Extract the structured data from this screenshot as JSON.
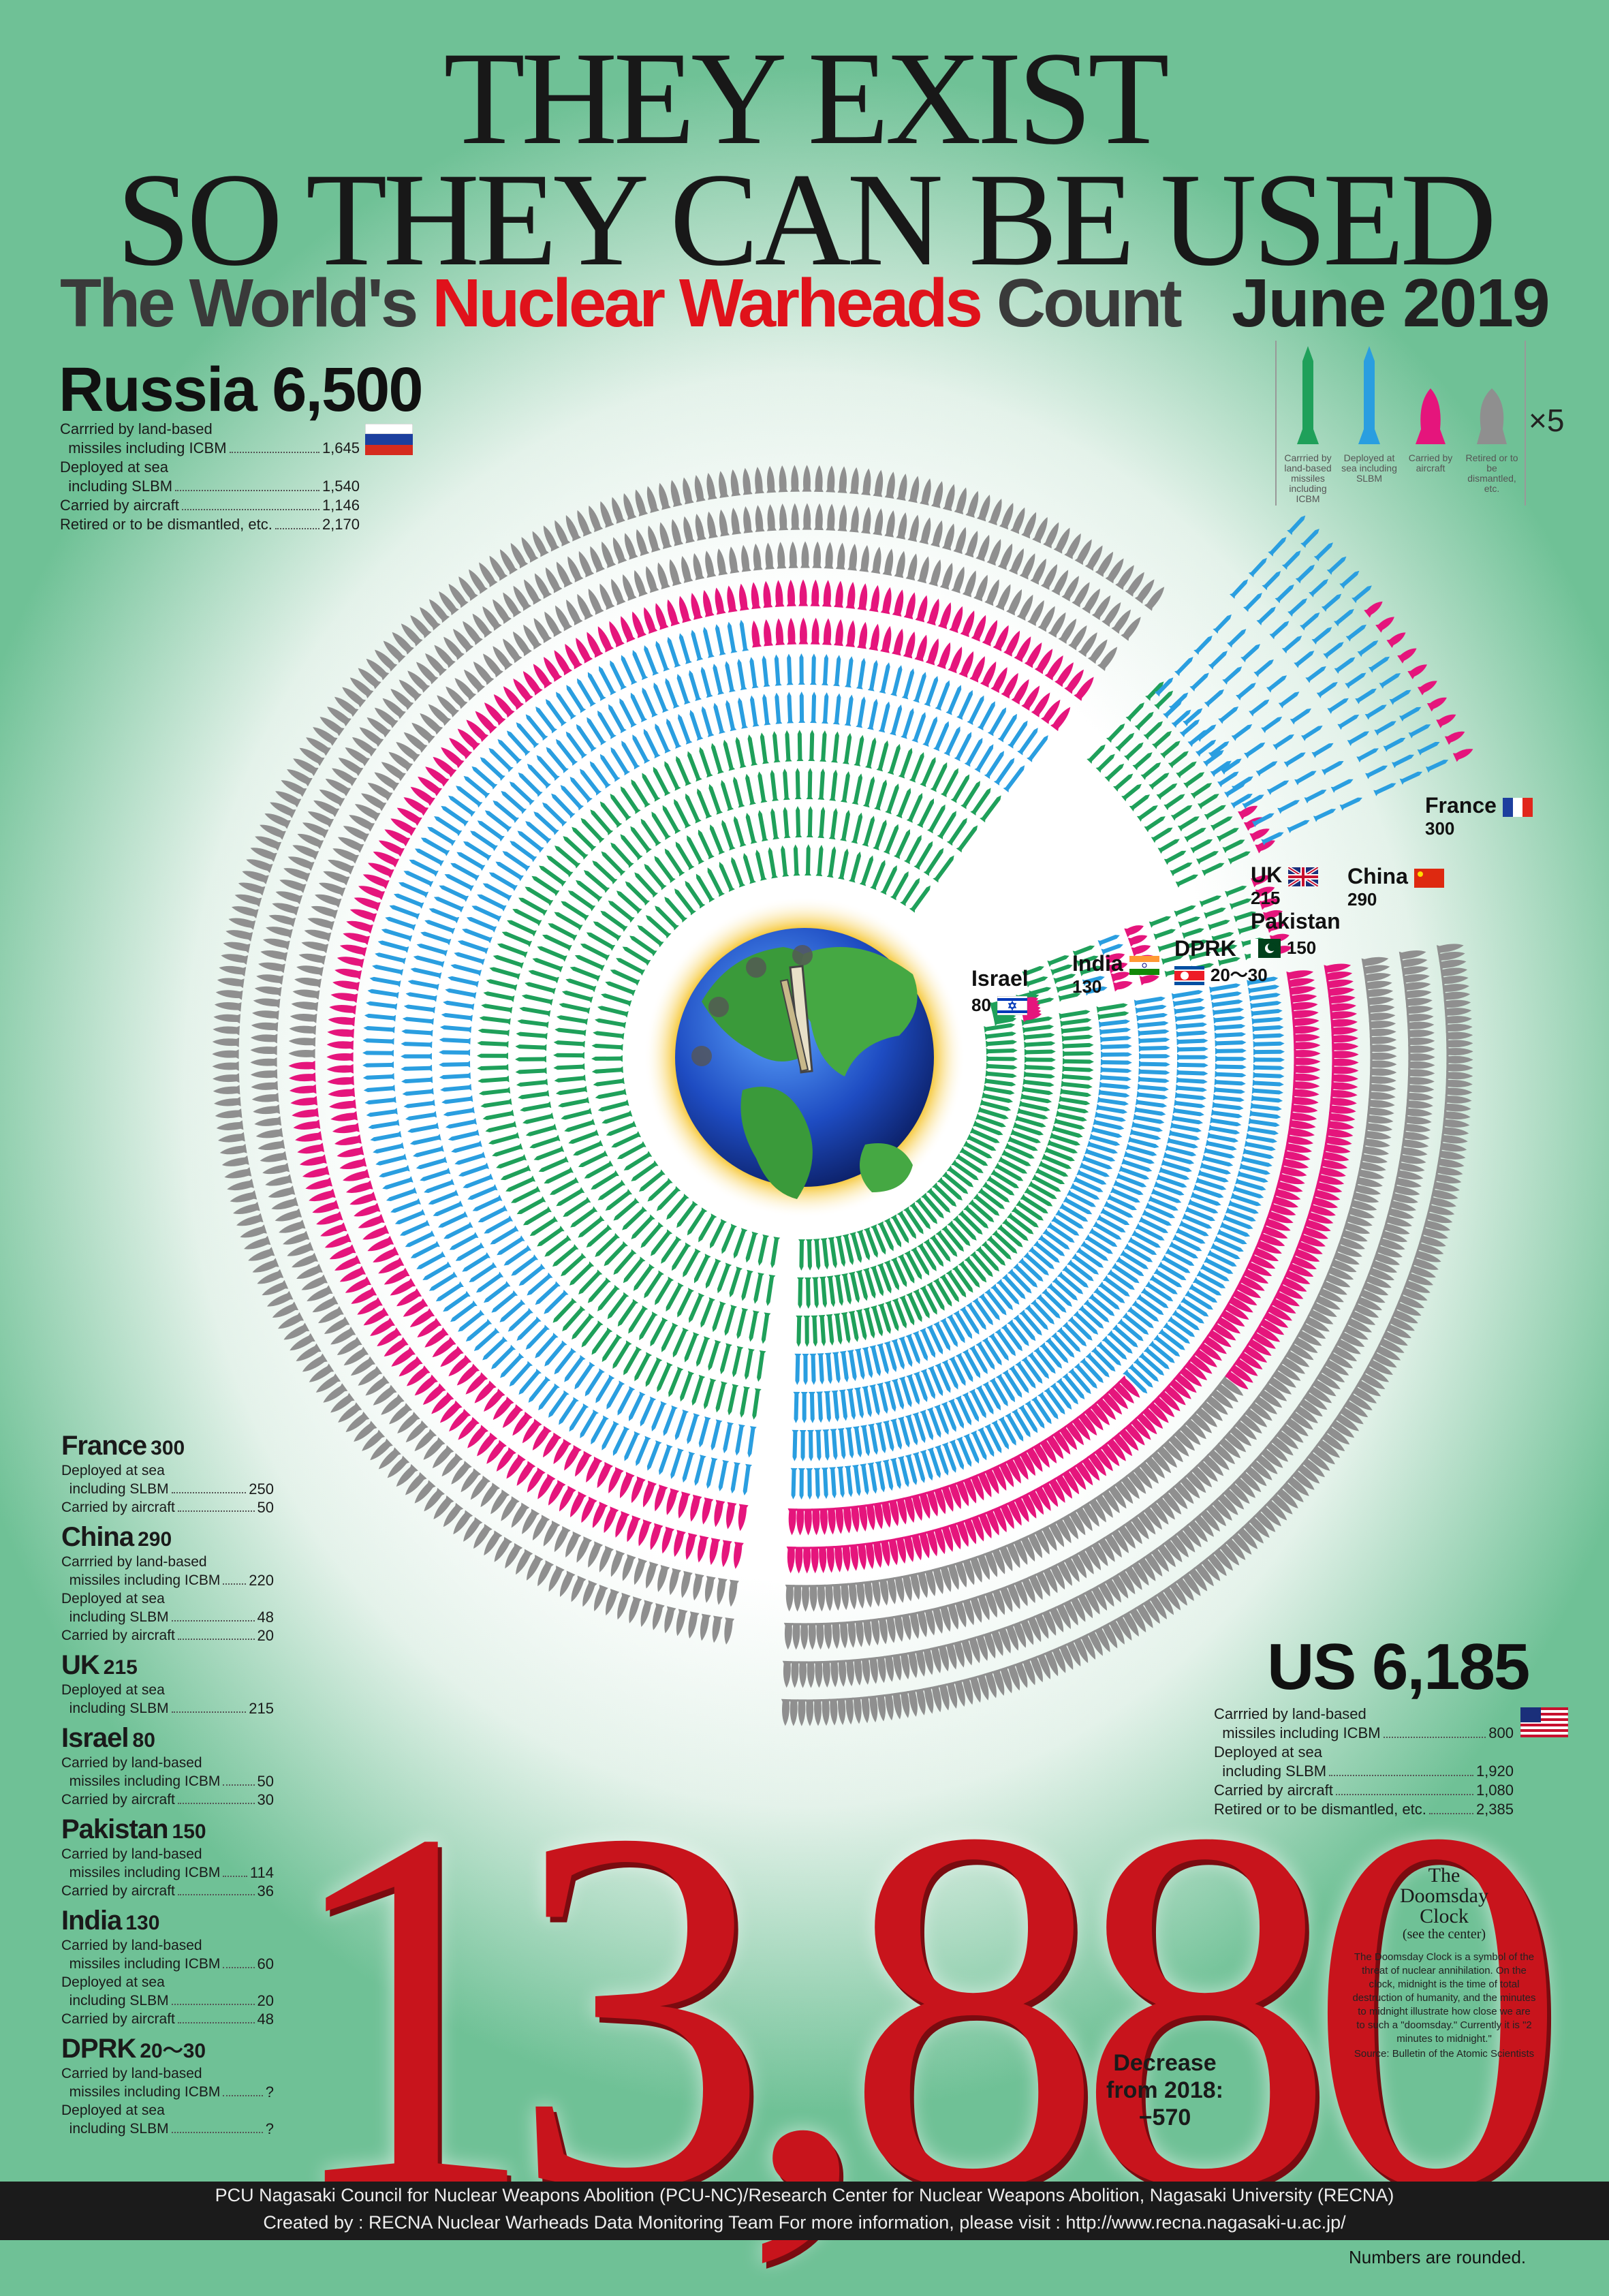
{
  "title_line1": "THEY EXIST",
  "title_line2": "SO THEY CAN BE USED",
  "subtitle": {
    "part1": "The World's",
    "part2": "Nuclear Warheads",
    "part3": "Count"
  },
  "date": "June 2019",
  "legend": {
    "multiplier": "×5",
    "items": [
      {
        "label": "Carrried by land-based missiles including ICBM",
        "color": "#1fa05a",
        "icon": "icbm-icon"
      },
      {
        "label": "Deployed at sea including SLBM",
        "color": "#2a9ee0",
        "icon": "slbm-icon"
      },
      {
        "label": "Carried by aircraft",
        "color": "#e5157c",
        "icon": "aircraft-bomb-icon"
      },
      {
        "label": "Retired or to be dismantled, etc.",
        "color": "#8f8f8f",
        "icon": "retired-bomb-icon"
      }
    ]
  },
  "russia": {
    "name": "Russia",
    "total": "6,500",
    "rows": [
      {
        "label": "Carrried by land-based\n  missiles including ICBM",
        "value": "1,645"
      },
      {
        "label": "Deployed at sea\n  including SLBM",
        "value": "1,540"
      },
      {
        "label": "Carried by aircraft",
        "value": "1,146"
      },
      {
        "label": "Retired or to be dismantled, etc.",
        "value": "2,170"
      }
    ]
  },
  "us": {
    "name": "US",
    "total": "6,185",
    "rows": [
      {
        "label": "Carrried by land-based\n  missiles including ICBM",
        "value": "800"
      },
      {
        "label": "Deployed at sea\n  including SLBM",
        "value": "1,920"
      },
      {
        "label": "Carried by aircraft",
        "value": "1,080"
      },
      {
        "label": "Retired or to be dismantled, etc.",
        "value": "2,385"
      }
    ]
  },
  "others": [
    {
      "name": "France",
      "total": "300",
      "rows": [
        {
          "label": "Deployed at sea\n  including SLBM",
          "value": "250"
        },
        {
          "label": "Carried by aircraft",
          "value": "50"
        }
      ]
    },
    {
      "name": "China",
      "total": "290",
      "rows": [
        {
          "label": "Carrried by land-based\n  missiles including ICBM",
          "value": "220"
        },
        {
          "label": "Deployed at sea\n  including SLBM",
          "value": "48"
        },
        {
          "label": "Carried by aircraft",
          "value": "20"
        }
      ]
    },
    {
      "name": "UK",
      "total": "215",
      "rows": [
        {
          "label": "Deployed at sea\n  including SLBM",
          "value": "215"
        }
      ]
    },
    {
      "name": "Israel",
      "total": "80",
      "rows": [
        {
          "label": "Carried by land-based\n  missiles including ICBM",
          "value": "50"
        },
        {
          "label": "Carried by aircraft",
          "value": "30"
        }
      ]
    },
    {
      "name": "Pakistan",
      "total": "150",
      "rows": [
        {
          "label": "Carried by land-based\n  missiles including ICBM",
          "value": "114"
        },
        {
          "label": "Carried by aircraft",
          "value": "36"
        }
      ]
    },
    {
      "name": "India",
      "total": "130",
      "rows": [
        {
          "label": "Carried by land-based\n  missiles including ICBM",
          "value": "60"
        },
        {
          "label": "Deployed at sea\n  including SLBM",
          "value": "20"
        },
        {
          "label": "Carried by aircraft",
          "value": "48"
        }
      ]
    },
    {
      "name": "DPRK",
      "total": "20〜30",
      "rows": [
        {
          "label": "Carried by land-based\n  missiles including ICBM",
          "value": "?"
        },
        {
          "label": "Deployed at sea\n  including SLBM",
          "value": "?"
        }
      ]
    }
  ],
  "chart_labels": [
    {
      "name": "France",
      "total": "300"
    },
    {
      "name": "UK",
      "total": "215"
    },
    {
      "name": "China",
      "total": "290"
    },
    {
      "name": "Pakistan",
      "total": "150"
    },
    {
      "name": "DPRK",
      "total": "20〜30"
    },
    {
      "name": "India",
      "total": "130"
    },
    {
      "name": "Israel",
      "total": "80"
    }
  ],
  "chart_data": {
    "type": "pie",
    "title": "The World's Nuclear Warheads Count",
    "unit": "warheads",
    "icon_scale": 5,
    "total": 13880,
    "categories": [
      "Carrried by land-based missiles including ICBM",
      "Deployed at sea including SLBM",
      "Carried by aircraft",
      "Retired or to be dismantled, etc."
    ],
    "series": [
      {
        "name": "Russia",
        "values": [
          1645,
          1540,
          1146,
          2170
        ],
        "total": 6500
      },
      {
        "name": "US",
        "values": [
          800,
          1920,
          1080,
          2385
        ],
        "total": 6185
      },
      {
        "name": "France",
        "values": [
          0,
          250,
          50,
          0
        ],
        "total": 300
      },
      {
        "name": "China",
        "values": [
          220,
          48,
          20,
          0
        ],
        "total": 290
      },
      {
        "name": "UK",
        "values": [
          0,
          215,
          0,
          0
        ],
        "total": 215
      },
      {
        "name": "Pakistan",
        "values": [
          114,
          0,
          36,
          0
        ],
        "total": 150
      },
      {
        "name": "India",
        "values": [
          60,
          20,
          48,
          0
        ],
        "total": 130
      },
      {
        "name": "Israel",
        "values": [
          50,
          0,
          30,
          0
        ],
        "total": 80
      },
      {
        "name": "DPRK",
        "values": [
          null,
          null,
          0,
          0
        ],
        "total": "20〜30"
      }
    ],
    "colors": {
      "icbm": "#1fa05a",
      "slbm": "#2a9ee0",
      "aircraft": "#e5157c",
      "retired": "#8f8f8f"
    }
  },
  "big_total": "13,880",
  "decrease": {
    "line1": "Decrease",
    "line2": "from 2018:",
    "line3": "−570"
  },
  "clock": {
    "title1": "The",
    "title2": "Doomsday",
    "title3": "Clock",
    "sub": "(see the center)",
    "text": "The Doomsday Clock is a symbol of the threat of nuclear annihilation. On the clock, midnight is the time of total destruction of humanity, and the minutes to midnight illustrate how close we are to such a \"doomsday.\" Currently it is \"2 minutes to midnight.\"",
    "source": "Source: Bulletin of the Atomic Scientists"
  },
  "footer": {
    "line1": "PCU Nagasaki Council for Nuclear Weapons Abolition (PCU-NC)/Research Center for Nuclear Weapons Abolition, Nagasaki University (RECNA)",
    "line2": "Created by : RECNA Nuclear Warheads Data Monitoring Team    For more information, please visit : http://www.recna.nagasaki-u.ac.jp/"
  },
  "rounded_note": "Numbers are rounded."
}
